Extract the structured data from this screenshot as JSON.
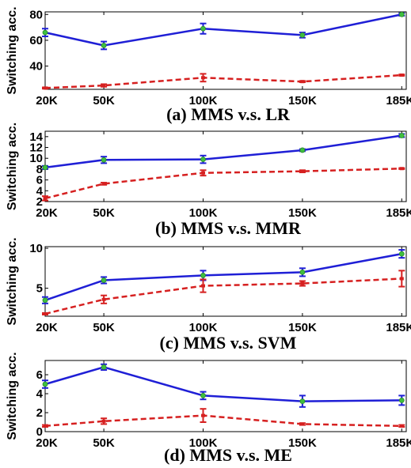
{
  "chart_data": [
    {
      "type": "line",
      "title": "(a) MMS v.s. LR",
      "ylabel": "Switching acc.",
      "categories": [
        "20K",
        "50K",
        "100K",
        "150K",
        "185K"
      ],
      "ylim": [
        22,
        82
      ],
      "yticks": [
        40,
        60,
        80
      ],
      "series": [
        {
          "color": "#1f1fd6",
          "style": "solid",
          "values": [
            66,
            56,
            69,
            64,
            80
          ],
          "errors": [
            3,
            3,
            4,
            2,
            1
          ]
        },
        {
          "color": "#d62020",
          "style": "dashed",
          "values": [
            23,
            25,
            31,
            28,
            33
          ],
          "errors": [
            0.5,
            1,
            3,
            0.5,
            0.5
          ]
        }
      ]
    },
    {
      "type": "line",
      "title": "(b) MMS v.s. MMR",
      "ylabel": "Switching acc.",
      "categories": [
        "20K",
        "50K",
        "100K",
        "150K",
        "185K"
      ],
      "ylim": [
        2,
        15
      ],
      "yticks": [
        2,
        4,
        6,
        8,
        10,
        12,
        14
      ],
      "series": [
        {
          "color": "#1f1fd6",
          "style": "solid",
          "values": [
            8.3,
            9.7,
            9.8,
            11.5,
            14.2
          ],
          "errors": [
            0.3,
            0.6,
            0.7,
            0.2,
            0.3
          ]
        },
        {
          "color": "#d62020",
          "style": "dashed",
          "values": [
            2.6,
            5.3,
            7.3,
            7.6,
            8.1
          ],
          "errors": [
            0.4,
            0.2,
            0.5,
            0.2,
            0.1
          ]
        }
      ]
    },
    {
      "type": "line",
      "title": "(c) MMS v.s. SVM",
      "ylabel": "Switching acc.",
      "categories": [
        "20K",
        "50K",
        "100K",
        "150K",
        "185K"
      ],
      "ylim": [
        1.5,
        10.2
      ],
      "yticks": [
        5,
        10
      ],
      "series": [
        {
          "color": "#1f1fd6",
          "style": "solid",
          "values": [
            3.5,
            6.0,
            6.6,
            7.0,
            9.3
          ],
          "errors": [
            0.4,
            0.4,
            0.6,
            0.5,
            0.5
          ]
        },
        {
          "color": "#d62020",
          "style": "dashed",
          "values": [
            1.8,
            3.6,
            5.3,
            5.6,
            6.2
          ],
          "errors": [
            0.1,
            0.5,
            0.8,
            0.3,
            1.0
          ]
        }
      ]
    },
    {
      "type": "line",
      "title": "(d) MMS v.s. ME",
      "ylabel": "Switching acc.",
      "categories": [
        "20K",
        "50K",
        "100K",
        "150K",
        "185K"
      ],
      "ylim": [
        0,
        7.5
      ],
      "yticks": [
        0,
        2,
        4,
        6
      ],
      "series": [
        {
          "color": "#1f1fd6",
          "style": "solid",
          "values": [
            5.0,
            6.8,
            3.8,
            3.2,
            3.3
          ],
          "errors": [
            0.4,
            0.3,
            0.4,
            0.6,
            0.5
          ]
        },
        {
          "color": "#d62020",
          "style": "dashed",
          "values": [
            0.6,
            1.1,
            1.7,
            0.8,
            0.6
          ],
          "errors": [
            0.1,
            0.3,
            0.7,
            0.1,
            0.1
          ]
        }
      ]
    }
  ]
}
